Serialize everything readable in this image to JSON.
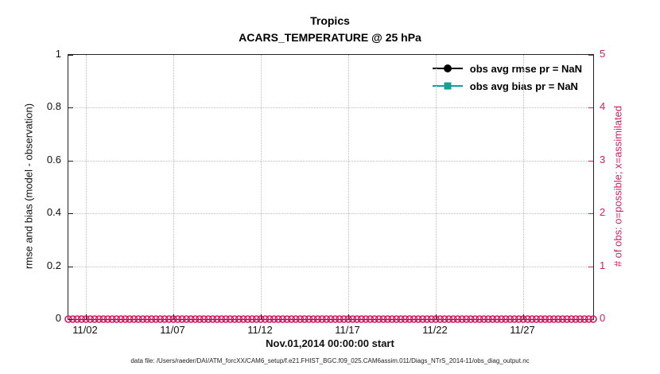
{
  "title": {
    "line1": "Tropics",
    "line2": "ACARS_TEMPERATURE @ 25 hPa"
  },
  "axes": {
    "left": {
      "label": "rmse and bias (model - observation)",
      "tick_labels": [
        "0",
        "0.2",
        "0.4",
        "0.6",
        "0.8",
        "1"
      ],
      "tick_values": [
        0,
        0.2,
        0.4,
        0.6,
        0.8,
        1
      ],
      "lim": [
        0,
        1
      ],
      "color": "#111111"
    },
    "right": {
      "label": "# of obs: o=possible; x=assimilated",
      "tick_labels": [
        "0",
        "1",
        "2",
        "3",
        "4",
        "5"
      ],
      "tick_values": [
        0,
        1,
        2,
        3,
        4,
        5
      ],
      "lim": [
        0,
        5
      ],
      "color": "#d81b60"
    },
    "x": {
      "label": "Nov.01,2014 00:00:00 start",
      "tick_labels": [
        "11/02",
        "11/07",
        "11/12",
        "11/17",
        "11/22",
        "11/27"
      ],
      "tick_days": [
        2,
        7,
        12,
        17,
        22,
        27
      ],
      "lim_days": [
        1,
        31
      ]
    }
  },
  "legend": {
    "entries": [
      {
        "label": "obs avg rmse pr = NaN",
        "marker": "circle",
        "color": "#000000"
      },
      {
        "label": "obs avg bias pr = NaN",
        "marker": "square",
        "color": "#14a098"
      }
    ]
  },
  "footer": {
    "text": "data file: /Users/raeder/DAI/ATM_forcXX/CAM6_setup/f.e21.FHIST_BGC.f09_025.CAM6assim.011/Diags_NTrS_2014-11/obs_diag_output.nc"
  },
  "chart_data": {
    "type": "line",
    "title": "Tropics",
    "subtitle": "ACARS_TEMPERATURE @ 25 hPa",
    "xlabel": "Nov.01,2014 00:00:00 start",
    "x_tick_labels": [
      "11/02",
      "11/07",
      "11/12",
      "11/17",
      "11/22",
      "11/27"
    ],
    "x_range_days": [
      1,
      31
    ],
    "y_left": {
      "label": "rmse and bias (model - observation)",
      "range": [
        0,
        1
      ],
      "ticks": [
        0,
        0.2,
        0.4,
        0.6,
        0.8,
        1
      ]
    },
    "y_right": {
      "label": "# of obs: o=possible; x=assimilated",
      "range": [
        0,
        5
      ],
      "ticks": [
        0,
        1,
        2,
        3,
        4,
        5
      ]
    },
    "grid": true,
    "legend_position": "upper right inside",
    "series": [
      {
        "name": "obs avg rmse pr = NaN",
        "axis": "left",
        "marker": "circle",
        "color": "#000000",
        "values": [],
        "note": "all values NaN, nothing plotted"
      },
      {
        "name": "obs avg bias pr = NaN",
        "axis": "left",
        "marker": "square",
        "color": "#14a098",
        "values": [],
        "note": "all values NaN, nothing plotted"
      },
      {
        "name": "# of obs possible (o markers)",
        "axis": "right",
        "marker": "o",
        "color": "#d81b60",
        "constant_value": 0,
        "start_day": 1,
        "end_day": 31,
        "step_days": 0.25
      }
    ]
  }
}
